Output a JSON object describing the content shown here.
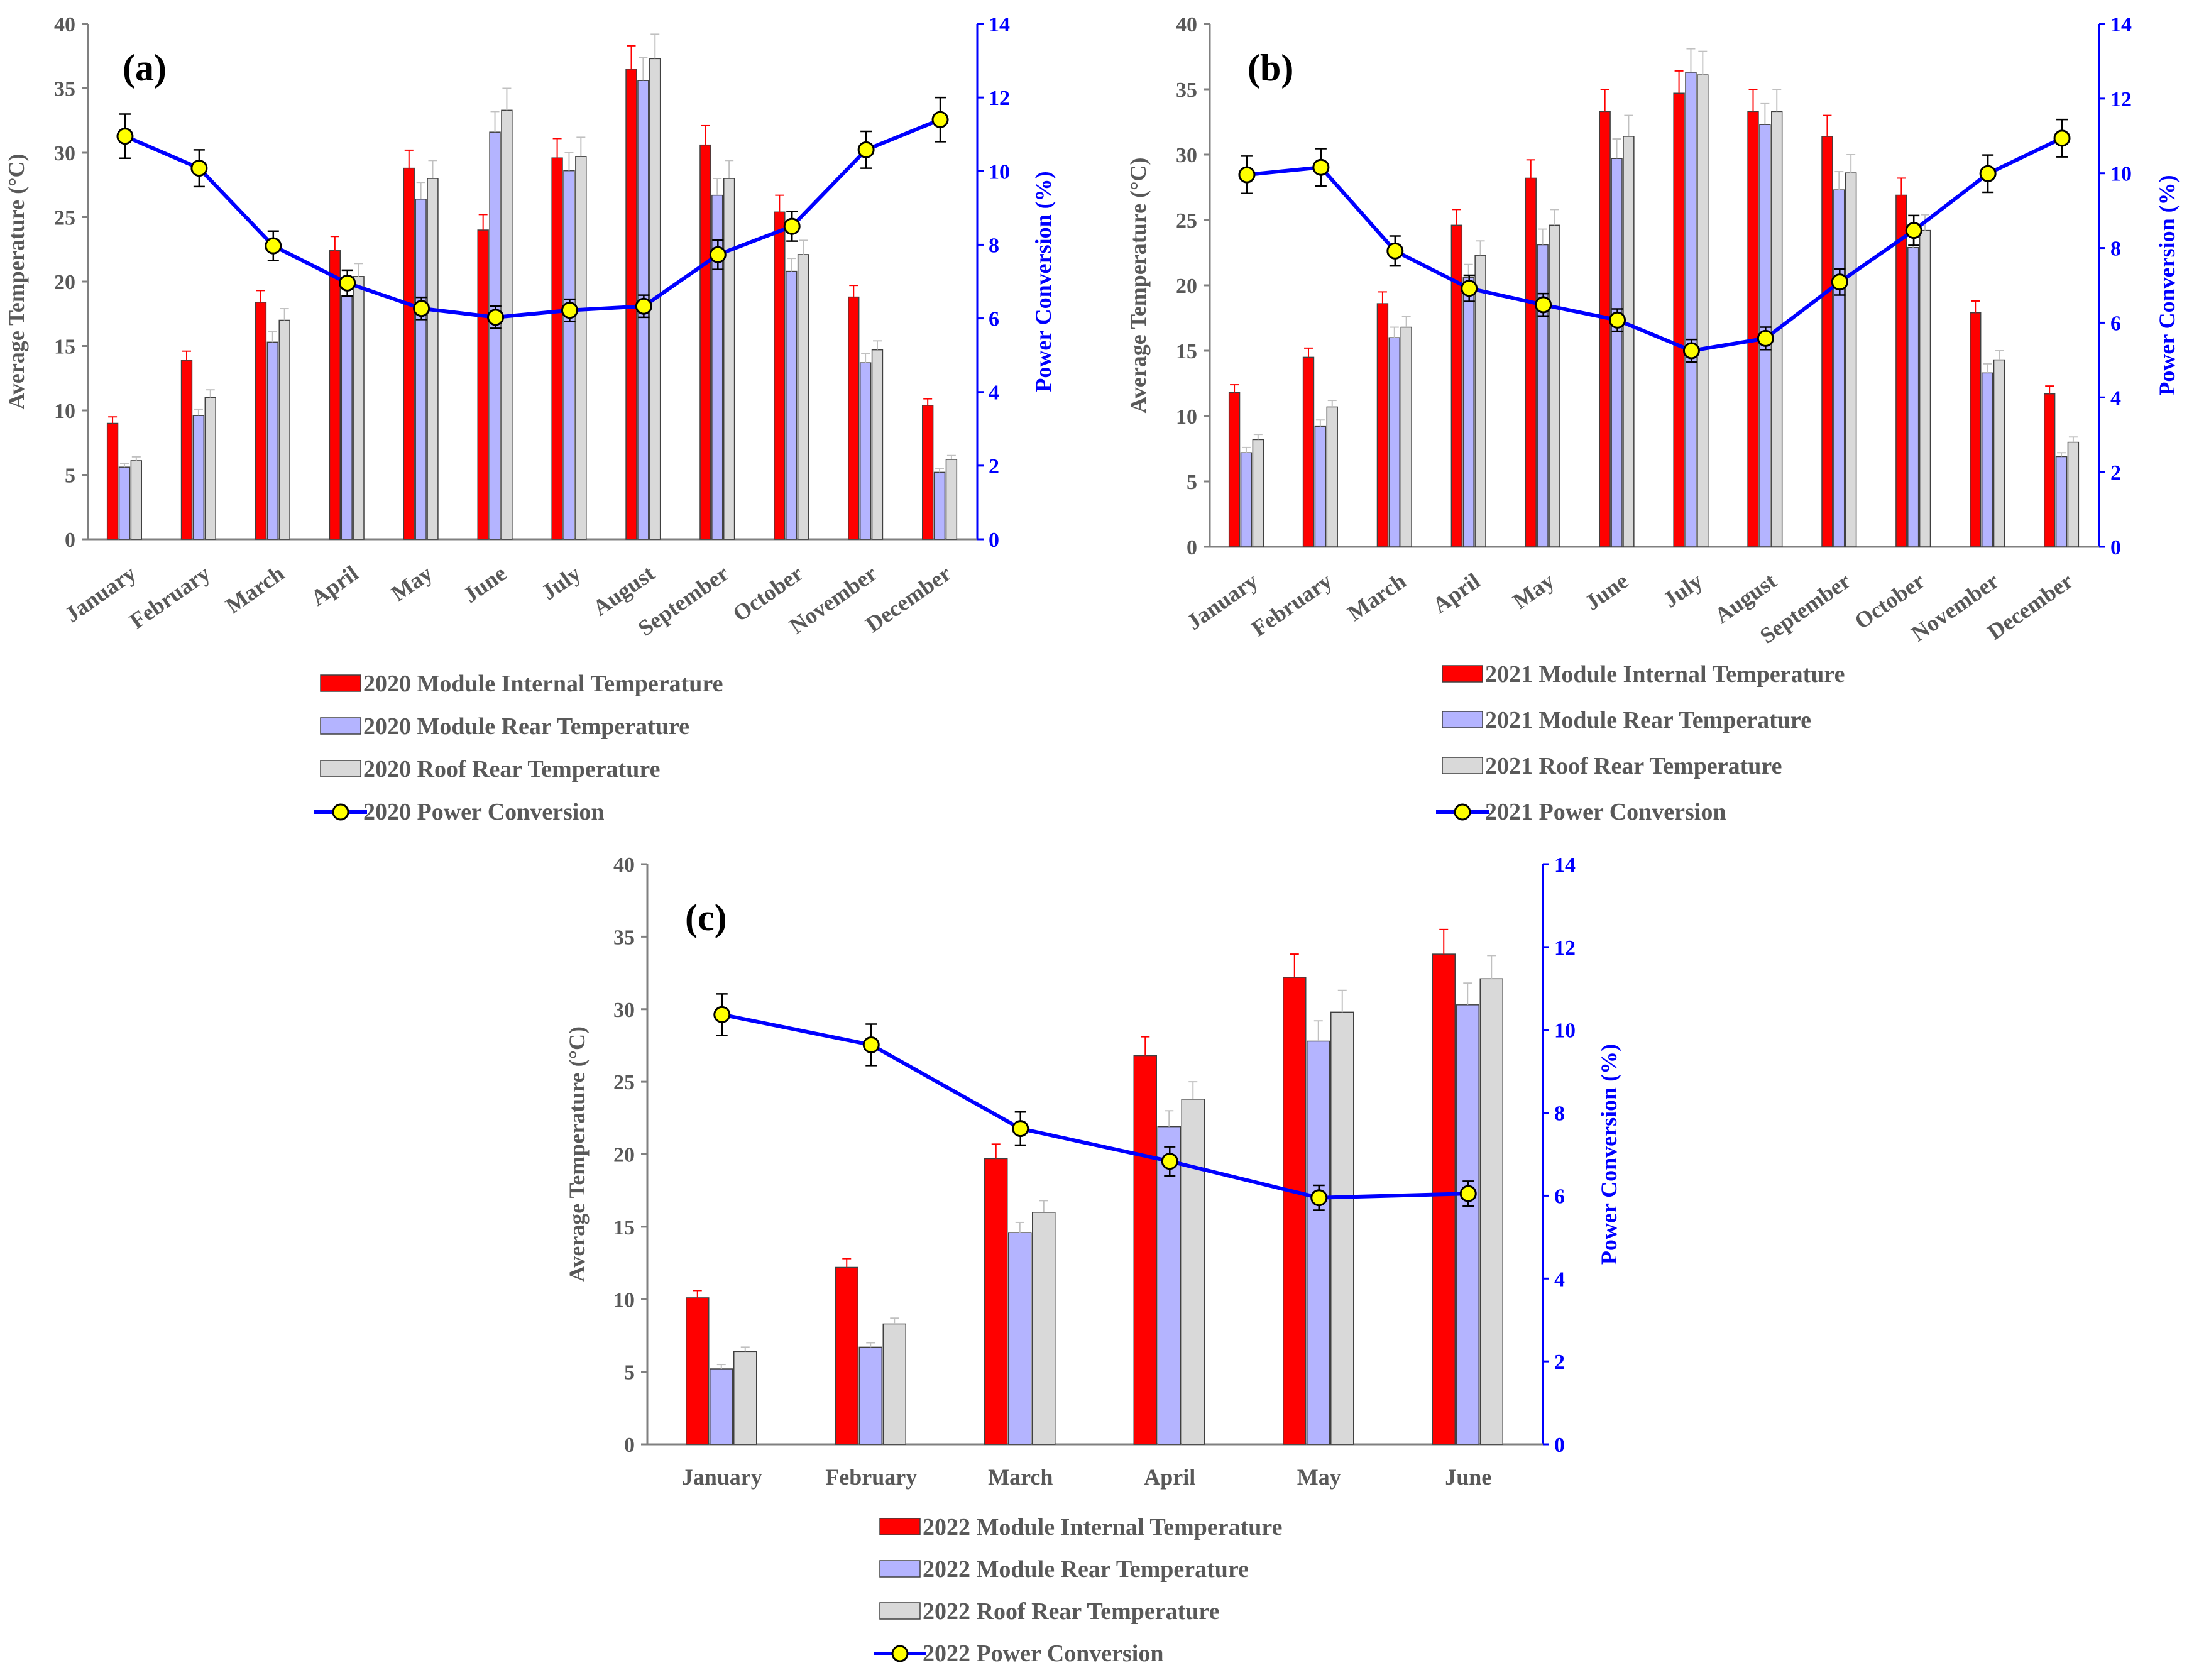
{
  "colors": {
    "internal": "#ff0000",
    "rear": "#b4b4ff",
    "roof": "#d9d9d9",
    "line": "#0000ff",
    "marker": "#ffff00"
  },
  "chart_data": [
    {
      "type": "bar",
      "panel_label": "(a)",
      "categories": [
        "January",
        "February",
        "March",
        "April",
        "May",
        "June",
        "July",
        "August",
        "September",
        "October",
        "November",
        "December"
      ],
      "series": [
        {
          "name": "2020 Module Internal Temperature",
          "values": [
            9.0,
            13.9,
            18.4,
            22.4,
            28.8,
            24.0,
            29.6,
            36.5,
            30.6,
            25.4,
            18.8,
            10.4
          ],
          "errors": [
            0.5,
            0.7,
            0.9,
            1.1,
            1.4,
            1.2,
            1.5,
            1.8,
            1.5,
            1.3,
            0.9,
            0.5
          ]
        },
        {
          "name": "2020 Module Rear Temperature",
          "values": [
            5.6,
            9.6,
            15.3,
            18.9,
            26.4,
            31.6,
            28.6,
            35.6,
            26.7,
            20.8,
            13.7,
            5.2
          ],
          "errors": [
            0.3,
            0.5,
            0.8,
            0.9,
            1.3,
            1.6,
            1.4,
            1.8,
            1.3,
            1.0,
            0.7,
            0.3
          ]
        },
        {
          "name": "2020 Roof Rear Temperature",
          "values": [
            6.1,
            11.0,
            17.0,
            20.4,
            28.0,
            33.3,
            29.7,
            37.3,
            28.0,
            22.1,
            14.7,
            6.2
          ],
          "errors": [
            0.3,
            0.6,
            0.9,
            1.0,
            1.4,
            1.7,
            1.5,
            1.9,
            1.4,
            1.1,
            0.7,
            0.3
          ]
        },
        {
          "name": "2020 Power Conversion",
          "type": "line",
          "axis": "right",
          "values": [
            10.95,
            10.08,
            7.97,
            6.96,
            6.27,
            6.03,
            6.22,
            6.33,
            7.73,
            8.5,
            10.58,
            11.4
          ],
          "errors": [
            0.6,
            0.5,
            0.4,
            0.35,
            0.3,
            0.3,
            0.3,
            0.3,
            0.4,
            0.4,
            0.5,
            0.6
          ]
        }
      ],
      "xlabel": "",
      "ylabel": "Average Temperature (°C)",
      "ylabel_right": "Power Conversion (%)",
      "ylim": [
        0,
        40
      ],
      "ylim_right": [
        0,
        14
      ],
      "yticks": [
        "0",
        "5",
        "10",
        "15",
        "20",
        "25",
        "30",
        "35",
        "40"
      ],
      "yticks_right": [
        "0",
        "2",
        "4",
        "6",
        "8",
        "10",
        "12",
        "14"
      ]
    },
    {
      "type": "bar",
      "panel_label": "(b)",
      "categories": [
        "January",
        "February",
        "March",
        "April",
        "May",
        "June",
        "July",
        "August",
        "September",
        "October",
        "November",
        "December"
      ],
      "series": [
        {
          "name": "2021 Module Internal Temperature",
          "values": [
            11.8,
            14.5,
            18.6,
            24.6,
            28.2,
            33.3,
            34.7,
            33.3,
            31.4,
            26.9,
            17.9,
            11.7
          ],
          "errors": [
            0.6,
            0.7,
            0.9,
            1.2,
            1.4,
            1.7,
            1.7,
            1.7,
            1.6,
            1.3,
            0.9,
            0.6
          ]
        },
        {
          "name": "2021 Module Rear Temperature",
          "values": [
            7.2,
            9.2,
            16.0,
            20.6,
            23.1,
            29.7,
            36.3,
            32.3,
            27.3,
            22.9,
            13.3,
            6.9
          ],
          "errors": [
            0.4,
            0.5,
            0.8,
            1.0,
            1.2,
            1.5,
            1.8,
            1.6,
            1.4,
            1.1,
            0.7,
            0.3
          ]
        },
        {
          "name": "2021 Roof Rear Temperature",
          "values": [
            8.2,
            10.7,
            16.8,
            22.3,
            24.6,
            31.4,
            36.1,
            33.3,
            28.6,
            24.2,
            14.3,
            8.0
          ],
          "errors": [
            0.4,
            0.5,
            0.8,
            1.1,
            1.2,
            1.6,
            1.8,
            1.7,
            1.4,
            1.2,
            0.7,
            0.4
          ]
        },
        {
          "name": "2021 Power Conversion",
          "type": "line",
          "axis": "right",
          "values": [
            9.96,
            10.16,
            7.92,
            6.92,
            6.48,
            6.07,
            5.25,
            5.58,
            7.09,
            8.47,
            9.99,
            10.94
          ],
          "errors": [
            0.5,
            0.5,
            0.4,
            0.35,
            0.3,
            0.3,
            0.3,
            0.3,
            0.35,
            0.4,
            0.5,
            0.5
          ]
        }
      ],
      "xlabel": "",
      "ylabel": "Average Temperature (°C)",
      "ylabel_right": "Power Conversion (%)",
      "ylim": [
        0,
        40
      ],
      "ylim_right": [
        0,
        14
      ],
      "yticks": [
        "0",
        "5",
        "10",
        "15",
        "20",
        "25",
        "30",
        "35",
        "40"
      ],
      "yticks_right": [
        "0",
        "2",
        "4",
        "6",
        "8",
        "10",
        "12",
        "14"
      ]
    },
    {
      "type": "bar",
      "panel_label": "(c)",
      "categories": [
        "January",
        "February",
        "March",
        "April",
        "May",
        "June"
      ],
      "series": [
        {
          "name": "2022 Module Internal Temperature",
          "values": [
            10.1,
            12.2,
            19.7,
            26.8,
            32.2,
            33.8
          ],
          "errors": [
            0.5,
            0.6,
            1.0,
            1.3,
            1.6,
            1.7
          ]
        },
        {
          "name": "2022 Module Rear Temperature",
          "values": [
            5.2,
            6.7,
            14.6,
            21.9,
            27.8,
            30.3
          ],
          "errors": [
            0.3,
            0.3,
            0.7,
            1.1,
            1.4,
            1.5
          ]
        },
        {
          "name": "2022 Roof Rear Temperature",
          "values": [
            6.4,
            8.3,
            16.0,
            23.8,
            29.8,
            32.1
          ],
          "errors": [
            0.3,
            0.4,
            0.8,
            1.2,
            1.5,
            1.6
          ]
        },
        {
          "name": "2022 Power Conversion",
          "type": "line",
          "axis": "right",
          "values": [
            10.37,
            9.64,
            7.62,
            6.83,
            5.95,
            6.05
          ],
          "errors": [
            0.5,
            0.5,
            0.4,
            0.35,
            0.3,
            0.3
          ]
        }
      ],
      "xlabel": "",
      "ylabel": "Average Temperature (°C)",
      "ylabel_right": "Power Conversion (%)",
      "ylim": [
        0,
        40
      ],
      "ylim_right": [
        0,
        14
      ],
      "yticks": [
        "0",
        "5",
        "10",
        "15",
        "20",
        "25",
        "30",
        "35",
        "40"
      ],
      "yticks_right": [
        "0",
        "2",
        "4",
        "6",
        "8",
        "10",
        "12",
        "14"
      ]
    }
  ]
}
